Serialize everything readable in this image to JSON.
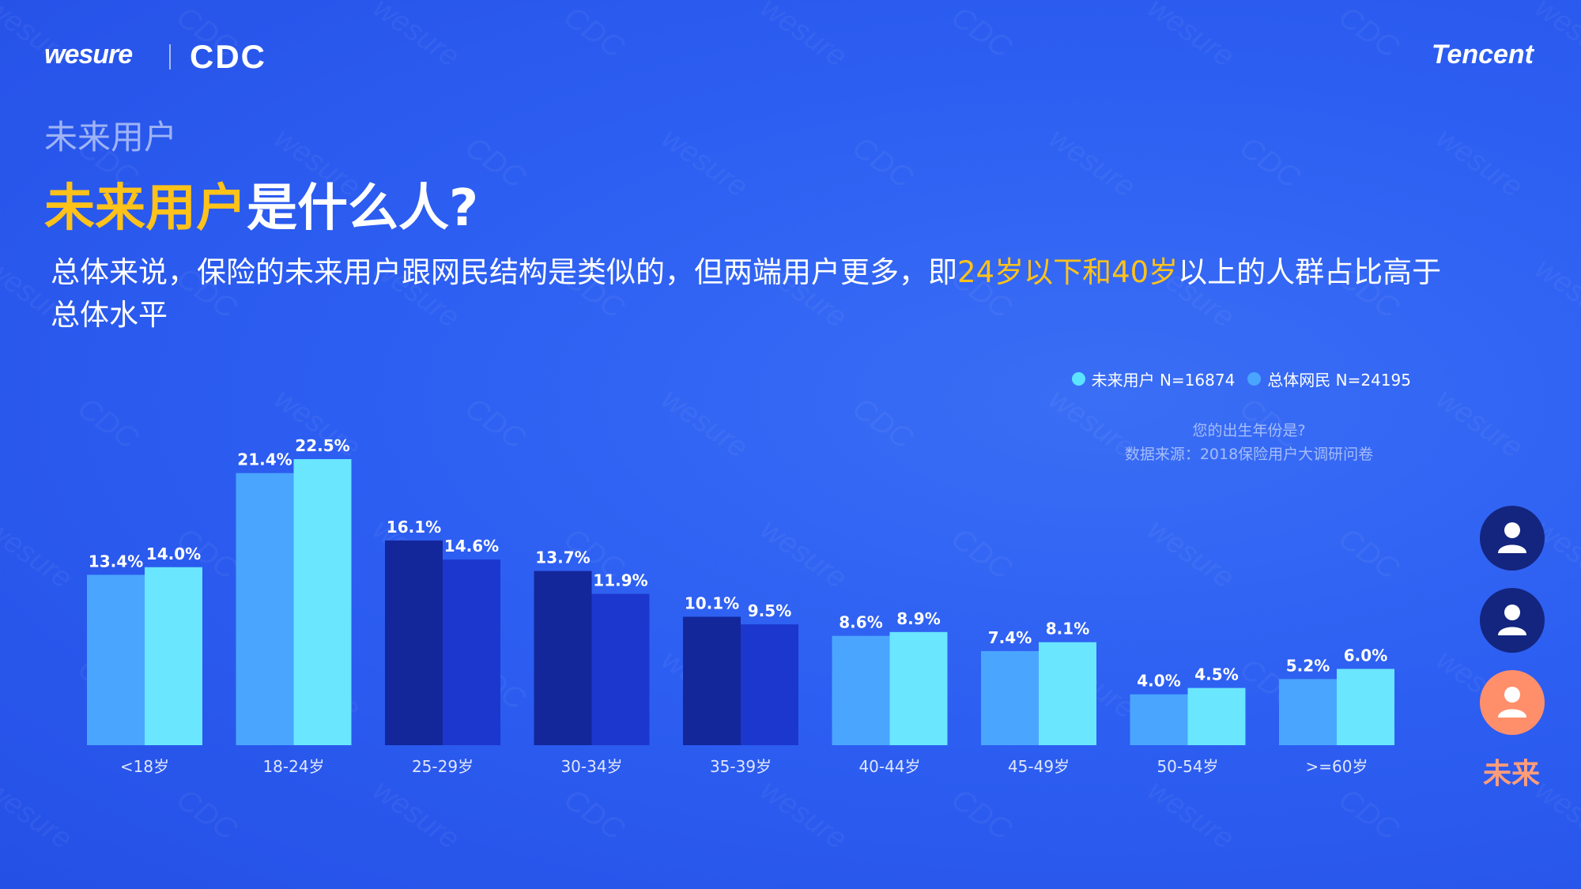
{
  "brand": {
    "wesure": "wesure",
    "cdc": "CDC",
    "tencent": "Tencent"
  },
  "subheader": "未来用户",
  "headline": {
    "highlight": "未来用户",
    "rest": "是什么人?"
  },
  "description": {
    "part1": "总体来说，保险的未来用户跟网民结构是类似的，但两端用户更多，即",
    "highlight": "24岁以下和40岁",
    "part2": "以上的人群占比高于总体水平"
  },
  "legend": [
    {
      "label": "未来用户 N=16874",
      "color": "#5ce3ff"
    },
    {
      "label": "总体网民 N=24195",
      "color": "#4aa5ff"
    }
  ],
  "question": {
    "line1": "您的出生年份是?",
    "line2": "数据来源：2018保险用户大调研问卷"
  },
  "side": {
    "future_label": "未来"
  },
  "chart_data": {
    "type": "bar",
    "categories": [
      "<18岁",
      "18-24岁",
      "25-29岁",
      "30-34岁",
      "35-39岁",
      "40-44岁",
      "45-49岁",
      "50-54岁",
      ">=60岁"
    ],
    "series": [
      {
        "name": "未来用户 N=16874",
        "values": [
          13.4,
          21.4,
          16.1,
          13.7,
          10.1,
          8.6,
          7.4,
          4.0,
          5.2
        ],
        "labels": [
          "13.4%",
          "21.4%",
          "16.1%",
          "13.7%",
          "10.1%",
          "8.6%",
          "7.4%",
          "4.0%",
          "5.2%"
        ]
      },
      {
        "name": "总体网民 N=24195",
        "values": [
          14.0,
          22.5,
          14.6,
          11.9,
          9.5,
          8.9,
          8.1,
          4.5,
          6.0
        ],
        "labels": [
          "14.0%",
          "22.5%",
          "14.6%",
          "11.9%",
          "9.5%",
          "8.9%",
          "8.1%",
          "4.5%",
          "6.0%"
        ]
      }
    ],
    "colors": {
      "highlight_pair": [
        "#4aa5ff",
        "#6ae6ff"
      ],
      "muted_pair": [
        "#13279b",
        "#1c37cd"
      ]
    },
    "muted_categories": [
      "25-29岁",
      "30-34岁",
      "35-39岁"
    ],
    "ylim": [
      0,
      22.5
    ],
    "grid": false
  }
}
